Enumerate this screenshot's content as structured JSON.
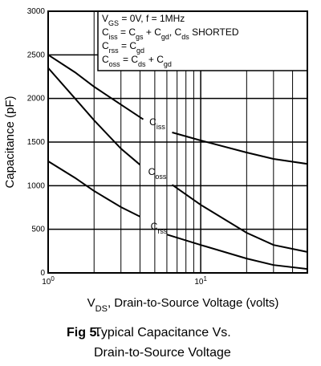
{
  "chart_data": {
    "type": "line",
    "ylabel": "Capacitance (pF)",
    "xlabel": [
      {
        "text": "V"
      },
      {
        "text": "DS",
        "sub": true
      },
      {
        "text": ", Drain-to-Source Voltage (volts)"
      }
    ],
    "xlim": [
      1,
      50
    ],
    "ylim": [
      0,
      3000
    ],
    "log_x": true,
    "grid": true,
    "xticks": [
      {
        "value": 1,
        "label": "10",
        "sup": "0"
      },
      {
        "value": 10,
        "label": "10",
        "sup": "1"
      }
    ],
    "xminor": [
      2,
      3,
      4,
      5,
      6,
      7,
      8,
      9,
      20,
      30,
      40
    ],
    "yticks": [
      0,
      500,
      1000,
      1500,
      2000,
      2500,
      3000
    ],
    "annotation": [
      [
        {
          "text": "V"
        },
        {
          "text": "GS",
          "sub": true
        },
        {
          "text": " = 0V,  f = 1MHz"
        }
      ],
      [
        {
          "text": "C"
        },
        {
          "text": "iss",
          "sub": true
        },
        {
          "text": " = C"
        },
        {
          "text": "gs",
          "sub": true
        },
        {
          "text": " + C"
        },
        {
          "text": "gd",
          "sub": true
        },
        {
          "text": ",  C"
        },
        {
          "text": "ds",
          "sub": true
        },
        {
          "text": " SHORTED"
        }
      ],
      [
        {
          "text": "C"
        },
        {
          "text": "rss",
          "sub": true
        },
        {
          "text": " = C"
        },
        {
          "text": "gd",
          "sub": true
        }
      ],
      [
        {
          "text": "C"
        },
        {
          "text": "oss",
          "sub": true
        },
        {
          "text": " = C"
        },
        {
          "text": "ds",
          "sub": true
        },
        {
          "text": " + C"
        },
        {
          "text": "gd",
          "sub": true
        }
      ]
    ],
    "series": [
      {
        "name": [
          {
            "text": "C"
          },
          {
            "text": "iss",
            "sub": true
          }
        ],
        "color": "#000000",
        "x": [
          1,
          1.5,
          2,
          3,
          4.2,
          5,
          6.5,
          10,
          20,
          30,
          50
        ],
        "values": [
          2500,
          2300,
          2135,
          1930,
          1760,
          null,
          1610,
          1518,
          1380,
          1307,
          1250
        ]
      },
      {
        "name": [
          {
            "text": "C"
          },
          {
            "text": "oss",
            "sub": true
          }
        ],
        "color": "#000000",
        "x": [
          1,
          1.5,
          2,
          3,
          4,
          5,
          6.5,
          10,
          20,
          30,
          50
        ],
        "values": [
          2350,
          2000,
          1750,
          1425,
          1240,
          null,
          1010,
          780,
          460,
          320,
          240
        ]
      },
      {
        "name": [
          {
            "text": "C"
          },
          {
            "text": "rss",
            "sub": true
          }
        ],
        "color": "#000000",
        "x": [
          1,
          1.5,
          2,
          3,
          4,
          5,
          6,
          10,
          20,
          30,
          50
        ],
        "values": [
          1280,
          1090,
          940,
          755,
          645,
          null,
          440,
          320,
          165,
          90,
          45
        ]
      }
    ],
    "caption": {
      "fig": "Fig 5.",
      "lines": [
        "Typical Capacitance Vs.",
        "Drain-to-Source Voltage"
      ]
    }
  }
}
